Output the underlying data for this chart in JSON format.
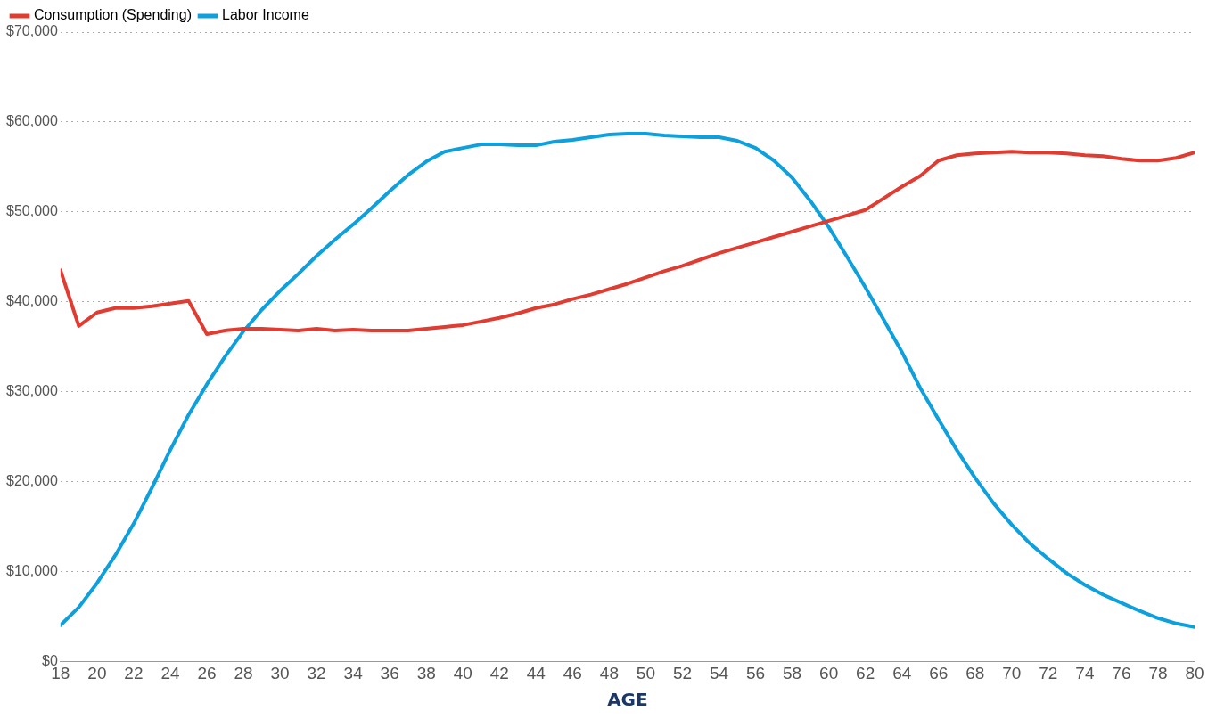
{
  "chart_data": {
    "type": "line",
    "xlabel": "AGE",
    "legend": "top left",
    "grid": "y",
    "marker": "none",
    "line_style": "solid",
    "x": [
      18,
      19,
      20,
      21,
      22,
      23,
      24,
      25,
      26,
      27,
      28,
      29,
      30,
      31,
      32,
      33,
      34,
      35,
      36,
      37,
      38,
      39,
      40,
      41,
      42,
      43,
      44,
      45,
      46,
      47,
      48,
      49,
      50,
      51,
      52,
      53,
      54,
      55,
      56,
      57,
      58,
      59,
      60,
      61,
      62,
      63,
      64,
      65,
      66,
      67,
      68,
      69,
      70,
      71,
      72,
      73,
      74,
      75,
      76,
      77,
      78,
      79,
      80
    ],
    "xlim": [
      18,
      80
    ],
    "xticks": [
      18,
      20,
      22,
      24,
      26,
      28,
      30,
      32,
      34,
      36,
      38,
      40,
      42,
      44,
      46,
      48,
      50,
      52,
      54,
      56,
      58,
      60,
      62,
      64,
      66,
      68,
      70,
      72,
      74,
      76,
      78,
      80
    ],
    "ylim": [
      0,
      70000
    ],
    "yticks": [
      {
        "value": 0,
        "label": "$0"
      },
      {
        "value": 10000,
        "label": "$10,000"
      },
      {
        "value": 20000,
        "label": "$20,000"
      },
      {
        "value": 30000,
        "label": "$30,000"
      },
      {
        "value": 40000,
        "label": "$40,000"
      },
      {
        "value": 50000,
        "label": "$50,000"
      },
      {
        "value": 60000,
        "label": "$60,000"
      },
      {
        "value": 70000,
        "label": "$70,000"
      }
    ],
    "series": [
      {
        "name": "Consumption (Spending)",
        "color": "#e03c31",
        "values": [
          43500,
          37300,
          38800,
          39300,
          39300,
          39500,
          39800,
          40100,
          36400,
          36800,
          37000,
          37000,
          36900,
          36800,
          37000,
          36800,
          36900,
          36800,
          36800,
          36800,
          37000,
          37200,
          37400,
          37800,
          38200,
          38700,
          39300,
          39700,
          40300,
          40800,
          41400,
          42000,
          42700,
          43400,
          44000,
          44700,
          45400,
          46000,
          46600,
          47200,
          47800,
          48400,
          49000,
          49600,
          50200,
          51500,
          52800,
          54000,
          55700,
          56300,
          56500,
          56600,
          56700,
          56600,
          56600,
          56500,
          56300,
          56200,
          55900,
          55700,
          55700,
          56000,
          56600
        ]
      },
      {
        "name": "Labor Income",
        "color": "#0ea0dc",
        "values": [
          4000,
          6000,
          8700,
          11800,
          15300,
          19300,
          23500,
          27400,
          30800,
          33900,
          36700,
          39100,
          41200,
          43100,
          45100,
          46900,
          48600,
          50400,
          52300,
          54100,
          55600,
          56700,
          57100,
          57500,
          57500,
          57400,
          57400,
          57800,
          58000,
          58300,
          58600,
          58700,
          58700,
          58500,
          58400,
          58300,
          58300,
          57900,
          57100,
          55700,
          53800,
          51200,
          48300,
          45000,
          41600,
          38000,
          34400,
          30400,
          26900,
          23500,
          20400,
          17600,
          15200,
          13100,
          11400,
          9800,
          8500,
          7400,
          6500,
          5600,
          4800,
          4200,
          3800
        ]
      }
    ]
  }
}
